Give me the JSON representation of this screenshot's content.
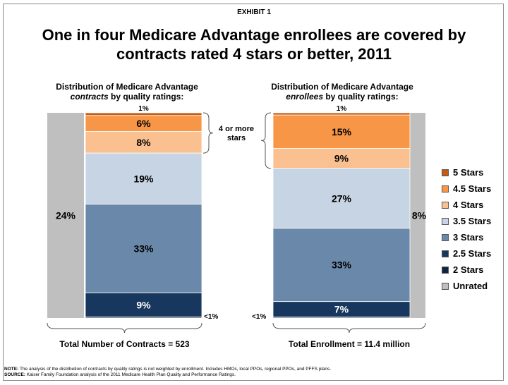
{
  "exhibit_label": "EXHIBIT 1",
  "title": "One in four Medicare Advantage enrollees are covered by contracts rated 4 stars or better, 2011",
  "colors": {
    "5 Stars": "#c55a11",
    "4.5 Stars": "#f79646",
    "4 Stars": "#fac090",
    "3.5 Stars": "#c6d4e3",
    "3 Stars": "#6a89aa",
    "2.5 Stars": "#17375e",
    "2 Stars": "#0f243e",
    "Unrated": "#bfbfbf"
  },
  "legend": {
    "items": [
      {
        "label": "5 Stars",
        "color": "#c55a11"
      },
      {
        "label": "4.5 Stars",
        "color": "#f79646"
      },
      {
        "label": "4 Stars",
        "color": "#fac090"
      },
      {
        "label": "3.5 Stars",
        "color": "#c6d4e3"
      },
      {
        "label": "3 Stars",
        "color": "#6a89aa"
      },
      {
        "label": "2.5 Stars",
        "color": "#17375e"
      },
      {
        "label": "2 Stars",
        "color": "#0f243e"
      },
      {
        "label": "Unrated",
        "color": "#bfbfbf"
      }
    ]
  },
  "bracket_label": "4 or more stars",
  "footnote": {
    "note_label": "NOTE:",
    "note_text": "The analysis of the distribution of contracts by quality ratings is not weighted by enrollment.  Includes HMOs, local PPOs, regional PPOs, and PFFS plans.",
    "source_label": "SOURCE:",
    "source_text": "Kaiser Family Foundation analysis of the 2011 Medicare Health Plan Quality and Performance Ratings."
  },
  "chart_data": [
    {
      "type": "bar",
      "subtitle_line1": "Distribution of Medicare Advantage",
      "subtitle_em": "contracts",
      "subtitle_rest": " by quality ratings:",
      "total_label": "Total Number of Contracts = 523",
      "unrated": {
        "value": 24,
        "label": "24%"
      },
      "segments": [
        {
          "name": "5 Stars",
          "value": 1,
          "label": "1%"
        },
        {
          "name": "4.5 Stars",
          "value": 6,
          "label": "6%"
        },
        {
          "name": "4 Stars",
          "value": 8,
          "label": "8%"
        },
        {
          "name": "3.5 Stars",
          "value": 19,
          "label": "19%"
        },
        {
          "name": "3 Stars",
          "value": 33,
          "label": "33%"
        },
        {
          "name": "2.5 Stars",
          "value": 9,
          "label": "9%"
        },
        {
          "name": "2 Stars",
          "value": 0.4,
          "label": "<1%"
        }
      ]
    },
    {
      "type": "bar",
      "subtitle_line1": "Distribution of Medicare Advantage",
      "subtitle_em": "enrollees",
      "subtitle_rest": " by quality ratings:",
      "total_label": "Total Enrollment = 11.4 million",
      "unrated": {
        "value": 8,
        "label": "8%"
      },
      "segments": [
        {
          "name": "5 Stars",
          "value": 1,
          "label": "1%"
        },
        {
          "name": "4.5 Stars",
          "value": 15,
          "label": "15%"
        },
        {
          "name": "4 Stars",
          "value": 9,
          "label": "9%"
        },
        {
          "name": "3.5 Stars",
          "value": 27,
          "label": "27%"
        },
        {
          "name": "3 Stars",
          "value": 33,
          "label": "33%"
        },
        {
          "name": "2.5 Stars",
          "value": 7,
          "label": "7%"
        },
        {
          "name": "2 Stars",
          "value": 0.4,
          "label": "<1%"
        }
      ]
    }
  ]
}
